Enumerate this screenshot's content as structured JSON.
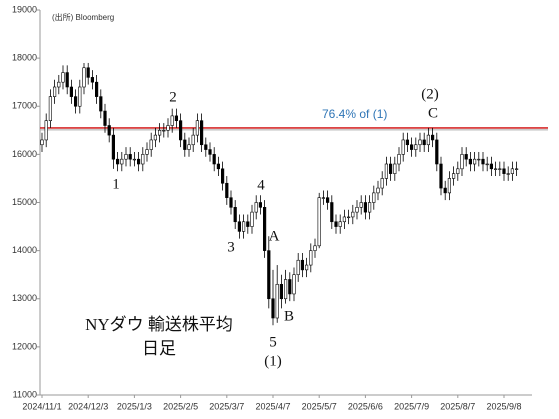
{
  "chart_data": {
    "type": "candlestick",
    "source": "(出所) Bloomberg",
    "title_lines": [
      "NYダウ 輸送株平均",
      "日足"
    ],
    "categories": [
      "2024/11/1",
      null,
      null,
      null,
      null,
      null,
      null,
      null,
      null,
      null,
      null,
      "2024/12/3",
      null,
      null,
      null,
      null,
      null,
      null,
      null,
      null,
      null,
      null,
      "2025/1/3",
      null,
      null,
      null,
      null,
      null,
      null,
      null,
      null,
      null,
      null,
      "2025/2/5",
      null,
      null,
      null,
      null,
      null,
      null,
      null,
      null,
      null,
      null,
      "2025/3/7",
      null,
      null,
      null,
      null,
      null,
      null,
      null,
      null,
      null,
      null,
      "2025/4/7",
      null,
      null,
      null,
      null,
      null,
      null,
      null,
      null,
      null,
      null,
      "2025/5/7",
      null,
      null,
      null,
      null,
      null,
      null,
      null,
      null,
      null,
      null,
      "2025/6/6",
      null,
      null,
      null,
      null,
      null,
      null,
      null,
      null,
      null,
      null,
      "2025/7/9",
      null,
      null,
      null,
      null,
      null,
      null,
      null,
      null,
      null,
      null,
      "2025/8/7",
      null,
      null,
      null,
      null,
      null,
      null,
      null,
      null,
      null,
      null,
      "2025/9/8",
      null,
      null,
      null
    ],
    "open": [
      16200,
      16300,
      16700,
      17200,
      17400,
      17500,
      17700,
      17400,
      17200,
      17000,
      17400,
      17800,
      17600,
      17500,
      17200,
      16900,
      16600,
      16400,
      15900,
      15800,
      15900,
      16000,
      15900,
      15900,
      15800,
      16000,
      16100,
      16300,
      16400,
      16500,
      16500,
      16600,
      16800,
      16700,
      16300,
      16100,
      16200,
      16400,
      16700,
      16200,
      16100,
      16000,
      15800,
      15700,
      15400,
      15100,
      14900,
      14600,
      14400,
      14600,
      14500,
      14800,
      15000,
      14900,
      14000,
      13000,
      12600,
      13300,
      13000,
      13400,
      13100,
      13500,
      13800,
      13600,
      13700,
      14000,
      14100,
      15100,
      15100,
      15000,
      14600,
      14500,
      14600,
      14700,
      14700,
      14800,
      14900,
      15000,
      14800,
      15000,
      15200,
      15300,
      15500,
      15800,
      15600,
      15800,
      16000,
      16300,
      16200,
      16100,
      16200,
      16300,
      16200,
      16400,
      16300,
      15800,
      15300,
      15200,
      15500,
      15600,
      15700,
      16000,
      15900,
      15800,
      15900,
      15900,
      15800,
      15800,
      15700,
      15700,
      15700,
      15600,
      15600,
      15700
    ],
    "high": [
      16450,
      16850,
      17350,
      17550,
      17650,
      17850,
      17850,
      17550,
      17350,
      17550,
      17900,
      17900,
      17750,
      17650,
      17350,
      17050,
      16750,
      16550,
      16050,
      16050,
      16150,
      16150,
      16050,
      16050,
      16150,
      16250,
      16450,
      16550,
      16650,
      16650,
      16750,
      16950,
      16950,
      16850,
      16450,
      16350,
      16550,
      16850,
      16850,
      16350,
      16250,
      16150,
      15950,
      15850,
      15550,
      15250,
      15050,
      14750,
      14750,
      14750,
      14950,
      15150,
      15150,
      15050,
      14300,
      13600,
      13700,
      13500,
      13600,
      13550,
      13650,
      13950,
      13950,
      13850,
      14150,
      14250,
      15200,
      15250,
      15250,
      15150,
      14750,
      14750,
      14850,
      14850,
      14950,
      15050,
      15150,
      15150,
      15150,
      15350,
      15450,
      15650,
      15950,
      15950,
      15950,
      16150,
      16450,
      16450,
      16350,
      16350,
      16450,
      16450,
      16550,
      16550,
      16450,
      15950,
      15450,
      15650,
      15750,
      15850,
      16150,
      16150,
      16050,
      16050,
      16050,
      16050,
      15950,
      15950,
      15850,
      15850,
      15850,
      15750,
      15850,
      15850
    ],
    "low": [
      16050,
      16150,
      16550,
      17050,
      17250,
      17350,
      17250,
      17050,
      16850,
      16850,
      17250,
      17450,
      17350,
      17050,
      16750,
      16450,
      16250,
      15700,
      15650,
      15650,
      15750,
      15750,
      15750,
      15650,
      15650,
      15850,
      15950,
      16150,
      16250,
      16350,
      16350,
      16450,
      16550,
      16150,
      15950,
      15950,
      16050,
      16250,
      16050,
      15950,
      15850,
      15650,
      15550,
      15250,
      14950,
      14750,
      14450,
      14250,
      14250,
      14350,
      14350,
      14650,
      14750,
      13850,
      12800,
      12450,
      12500,
      12800,
      12900,
      12950,
      12950,
      13350,
      13450,
      13450,
      13550,
      13850,
      14050,
      14950,
      14850,
      14450,
      14350,
      14350,
      14450,
      14550,
      14550,
      14650,
      14750,
      14650,
      14650,
      14850,
      15050,
      15150,
      15350,
      15450,
      15450,
      15650,
      15850,
      16050,
      15950,
      15950,
      16050,
      16050,
      16050,
      16150,
      15650,
      15150,
      15050,
      15050,
      15350,
      15450,
      15550,
      15750,
      15650,
      15650,
      15750,
      15650,
      15650,
      15550,
      15550,
      15550,
      15450,
      15450,
      15450,
      15550
    ],
    "close": [
      16300,
      16700,
      17200,
      17400,
      17500,
      17700,
      17400,
      17200,
      17000,
      17400,
      17800,
      17600,
      17500,
      17200,
      16900,
      16600,
      16400,
      15900,
      15800,
      15900,
      16000,
      15900,
      15900,
      15800,
      16000,
      16100,
      16300,
      16400,
      16500,
      16500,
      16600,
      16800,
      16700,
      16300,
      16100,
      16200,
      16400,
      16700,
      16200,
      16100,
      16000,
      15800,
      15700,
      15400,
      15100,
      14900,
      14600,
      14400,
      14600,
      14500,
      14800,
      15000,
      14900,
      14000,
      13000,
      12600,
      13300,
      13000,
      13400,
      13100,
      13500,
      13800,
      13600,
      13700,
      14000,
      14100,
      15100,
      15100,
      15000,
      14600,
      14500,
      14600,
      14700,
      14700,
      14800,
      14900,
      15000,
      14800,
      15000,
      15200,
      15300,
      15500,
      15800,
      15600,
      15800,
      16000,
      16300,
      16200,
      16100,
      16200,
      16300,
      16200,
      16400,
      16300,
      15800,
      15300,
      15200,
      15500,
      15600,
      15700,
      16000,
      15900,
      15800,
      15900,
      15900,
      15800,
      15800,
      15700,
      15700,
      15700,
      15600,
      15600,
      15700,
      15700
    ],
    "up_color": "#ffffff",
    "down_color": "#000000",
    "wick_color": "#000000",
    "reference_line": {
      "value": 16550,
      "label": "76.4% of (1)",
      "color": "#d62b2b",
      "label_color": "#2e75b6"
    },
    "wave_labels": [
      "1",
      "2",
      "3",
      "4",
      "5",
      "(1)",
      "A",
      "B",
      "(2)",
      "C"
    ],
    "ylim": [
      11000,
      19000
    ],
    "yticks": [
      11000,
      12000,
      13000,
      14000,
      15000,
      16000,
      17000,
      18000,
      19000
    ],
    "grid": false
  }
}
